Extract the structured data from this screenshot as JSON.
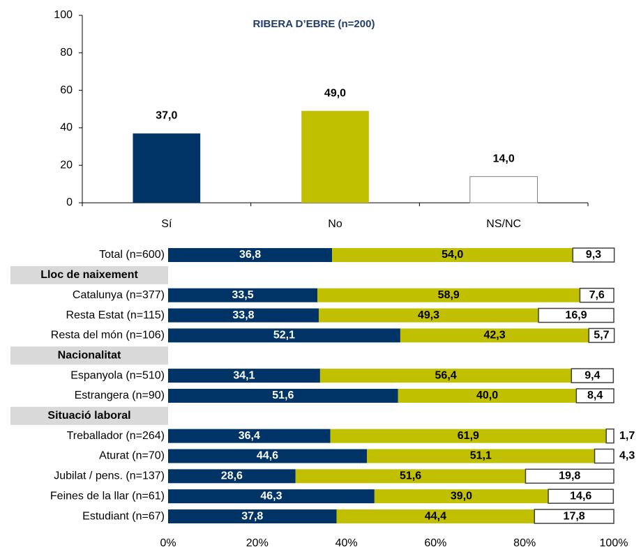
{
  "chart_data": [
    {
      "type": "bar",
      "title": "RIBERA D’EBRE (n=200)",
      "categories": [
        "Sí",
        "No",
        "NS/NC"
      ],
      "values": [
        37.0,
        49.0,
        14.0
      ],
      "value_labels": [
        "37,0",
        "49,0",
        "14,0"
      ],
      "colors": [
        "#003366",
        "#c0c000",
        "#ffffff"
      ],
      "ylim": [
        0,
        100
      ],
      "yticks": [
        0,
        20,
        40,
        60,
        80,
        100
      ]
    },
    {
      "type": "stacked-hbar",
      "categories": [
        "Total (n=600)",
        "Lloc de naixement",
        "Catalunya (n=377)",
        "Resta Estat (n=115)",
        "Resta del món (n=106)",
        "Nacionalitat",
        "Espanyola (n=510)",
        "Estrangera (n=90)",
        "Situació laboral",
        "Treballador (n=264)",
        "Aturat (n=70)",
        "Jubilat / pens. (n=137)",
        "Feines de la llar (n=61)",
        "Estudiant (n=67)"
      ],
      "series": [
        {
          "color": "#003366",
          "values": [
            36.8,
            null,
            33.5,
            33.8,
            52.1,
            null,
            34.1,
            51.6,
            null,
            36.4,
            44.6,
            28.6,
            46.3,
            37.8
          ],
          "value_labels": [
            "36,8",
            null,
            "33,5",
            "33,8",
            "52,1",
            null,
            "34,1",
            "51,6",
            null,
            "36,4",
            "44,6",
            "28,6",
            "46,3",
            "37,8"
          ]
        },
        {
          "color": "#c0c000",
          "values": [
            54.0,
            null,
            58.9,
            49.3,
            42.3,
            null,
            56.4,
            40.0,
            null,
            61.9,
            51.1,
            51.6,
            39.0,
            44.4
          ],
          "value_labels": [
            "54,0",
            null,
            "58,9",
            "49,3",
            "42,3",
            null,
            "56,4",
            "40,0",
            null,
            "61,9",
            "51,1",
            "51,6",
            "39,0",
            "44,4"
          ]
        },
        {
          "color": "#ffffff",
          "values": [
            9.3,
            null,
            7.6,
            16.9,
            5.7,
            null,
            9.4,
            8.4,
            null,
            1.7,
            4.3,
            19.8,
            14.6,
            17.8
          ],
          "value_labels": [
            "9,3",
            null,
            "7,6",
            "16,9",
            "5,7",
            null,
            "9,4",
            "8,4",
            null,
            "1,7",
            "4,3",
            "19,8",
            "14,6",
            "17,8"
          ]
        }
      ],
      "xlim": [
        0,
        100
      ],
      "xticks": [
        {
          "value": 0,
          "label": "0%"
        },
        {
          "value": 20,
          "label": "20%"
        },
        {
          "value": 40,
          "label": "40%"
        },
        {
          "value": 60,
          "label": "60%"
        },
        {
          "value": 80,
          "label": "80%"
        },
        {
          "value": 100,
          "label": "100%"
        }
      ]
    }
  ]
}
